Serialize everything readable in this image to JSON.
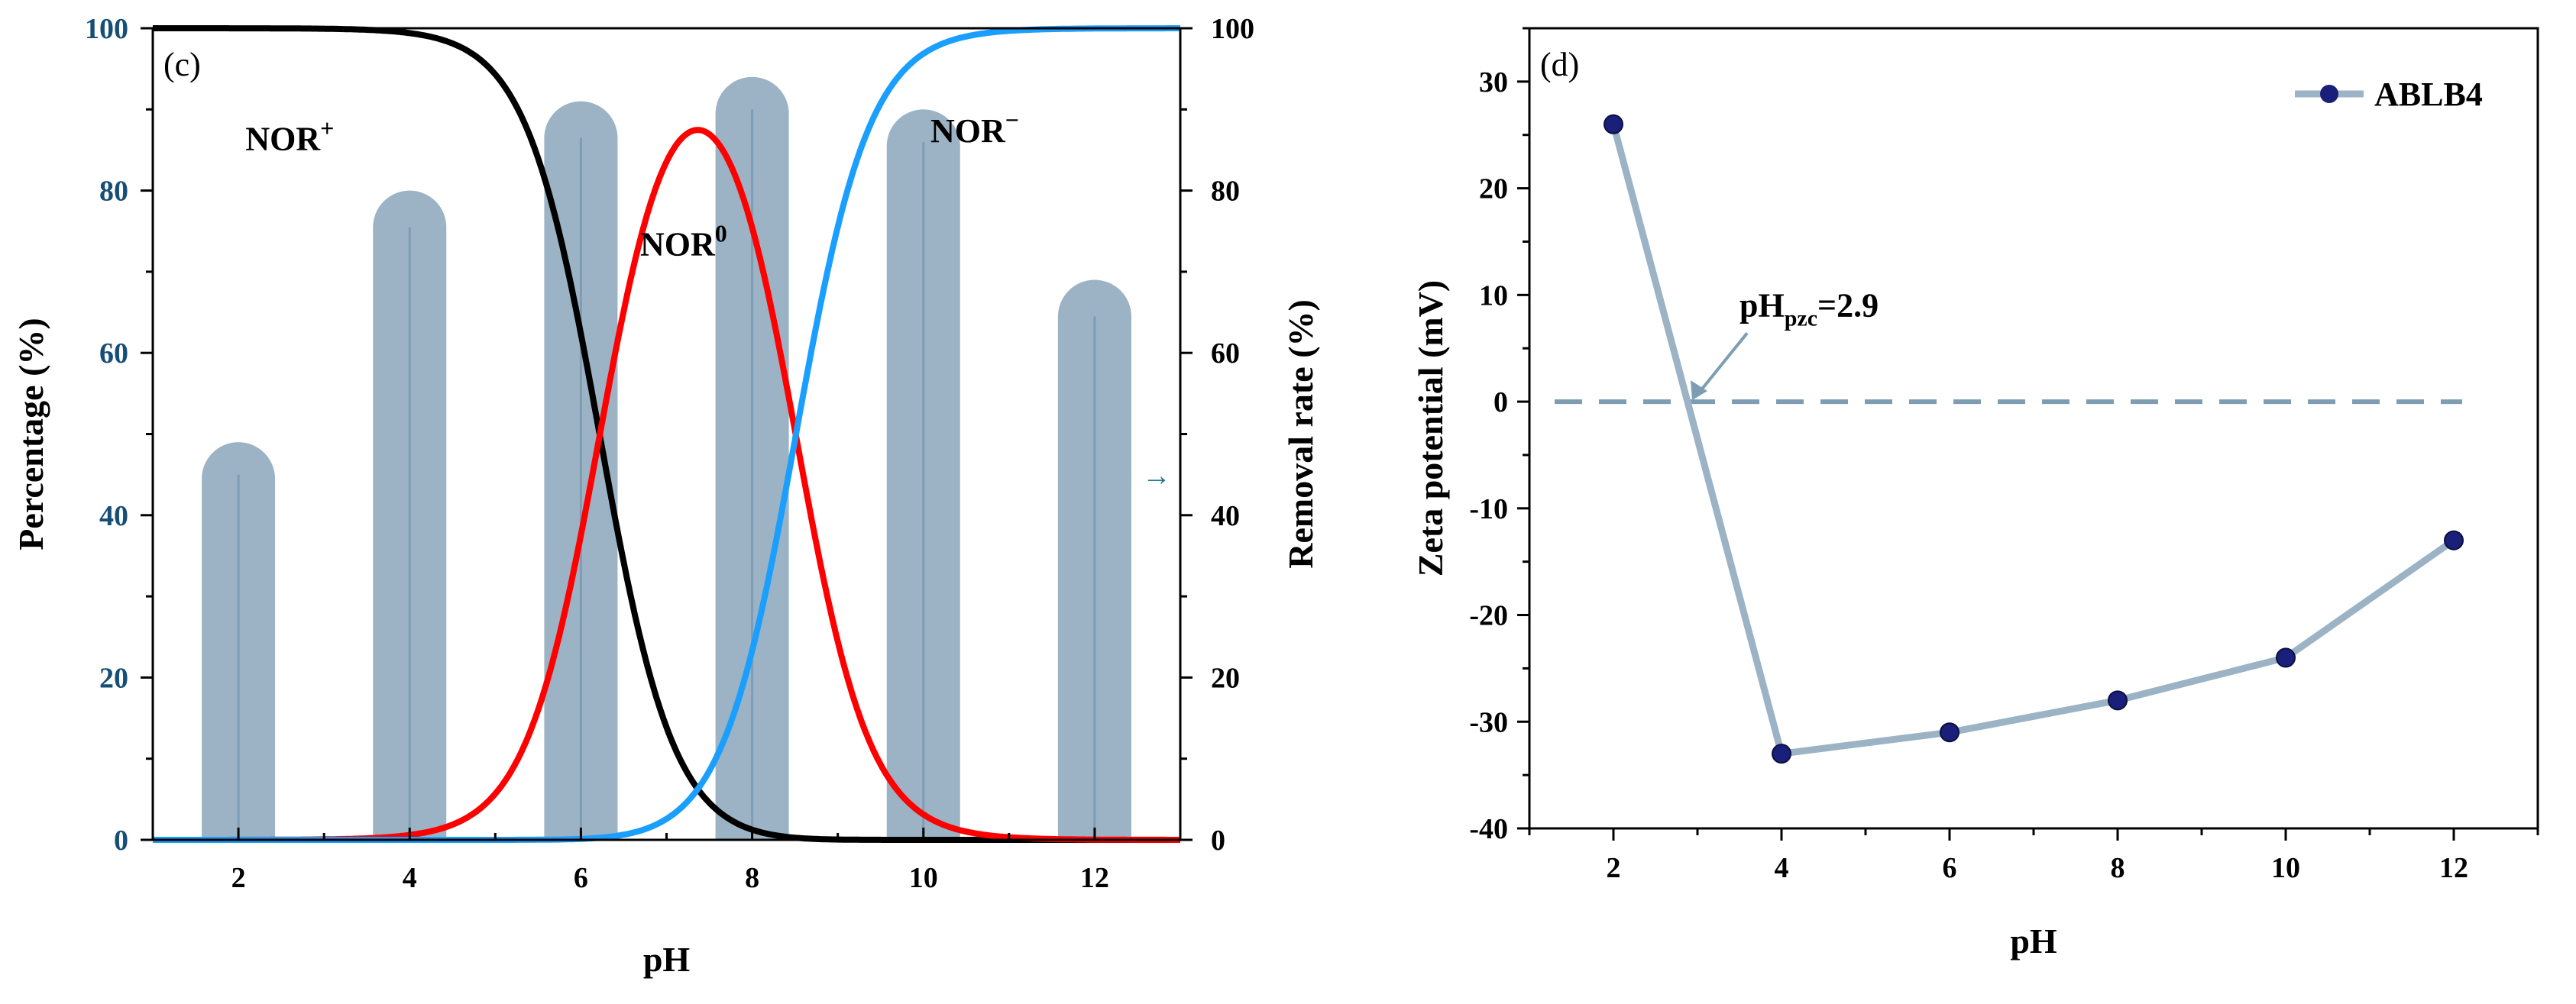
{
  "chart_data": [
    {
      "type": "line",
      "panel_label": "(c)",
      "xlabel": "pH",
      "ylabel": "Percentage (%)",
      "y2label": "Removal rate (%)",
      "xlim": [
        1,
        13
      ],
      "ylim": [
        0,
        100
      ],
      "y2lim": [
        0,
        100
      ],
      "x_ticks": [
        2,
        4,
        6,
        8,
        10,
        12
      ],
      "y_ticks": [
        0,
        20,
        40,
        60,
        80,
        100
      ],
      "y2_ticks": [
        0,
        20,
        40,
        60,
        80,
        100
      ],
      "species_curves": [
        {
          "name": "NOR+",
          "color": "#000000",
          "model": "cation",
          "pKa": [
            6.22,
            8.51
          ]
        },
        {
          "name": "NOR0",
          "color": "#ff0000",
          "model": "neutral",
          "pKa": [
            6.22,
            8.51
          ]
        },
        {
          "name": "NOR-",
          "color": "#1a9fff",
          "model": "anion",
          "pKa": [
            6.22,
            8.51
          ]
        }
      ],
      "annotations": [
        {
          "text": "NOR",
          "sup": "+",
          "x": 2.6,
          "y": 85
        },
        {
          "text": "NOR",
          "sup": "0",
          "x": 7.2,
          "y": 72
        },
        {
          "text": "NOR",
          "sup": "−",
          "x": 10.6,
          "y": 86
        }
      ],
      "removal_bars": {
        "name": "Removal rate",
        "color": "#9bb3c4",
        "axis": "right",
        "x": [
          2,
          4,
          6,
          8,
          10,
          12
        ],
        "values": [
          49,
          80,
          91,
          94,
          90,
          69
        ],
        "error_low": [
          45,
          75.5,
          86.5,
          90,
          86,
          64.5
        ]
      },
      "arrow_note": "→"
    },
    {
      "type": "line",
      "panel_label": "(d)",
      "xlabel": "pH",
      "ylabel": "Zeta potential (mV)",
      "xlim": [
        1,
        13
      ],
      "ylim": [
        -40,
        35
      ],
      "x_ticks": [
        2,
        4,
        6,
        8,
        10,
        12
      ],
      "y_ticks": [
        -40,
        -30,
        -20,
        -10,
        0,
        10,
        20,
        30
      ],
      "series": [
        {
          "name": "ABLB4",
          "line_color": "#9bb3c4",
          "marker_color": "#1a1f7a",
          "x": [
            2,
            4,
            6,
            8,
            10,
            12
          ],
          "values": [
            26,
            -33,
            -31,
            -28,
            -24,
            -13
          ]
        }
      ],
      "zero_line": {
        "y": 0,
        "style": "dashed",
        "color": "#7e9db3"
      },
      "annotation": {
        "prefix": "pH",
        "subscript": "pzc",
        "suffix": "=2.9",
        "point_x": 2.9,
        "point_y": 0,
        "text_x": 3.5,
        "text_y": 8
      },
      "legend": {
        "position": "top-right"
      }
    }
  ]
}
